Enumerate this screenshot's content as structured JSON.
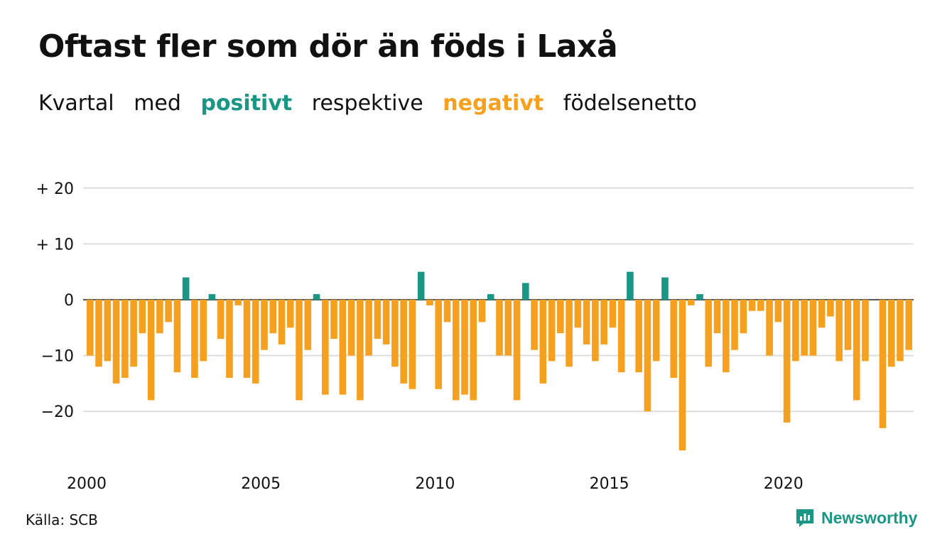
{
  "title": "Oftast fler som dör än föds i Laxå",
  "subtitle": {
    "w1": "Kvartal",
    "w2": "med",
    "positive": "positivt",
    "w3": "respektive",
    "negative": "negativt",
    "w4": "födelsenetto"
  },
  "source": "Källa: SCB",
  "brand": "Newsworthy",
  "colors": {
    "positive": "#1a9685",
    "negative": "#f5a01f",
    "grid": "#dddddd",
    "text": "#111111"
  },
  "chart_data": {
    "type": "bar",
    "x_start": 2000,
    "periods_per_year": 4,
    "ylim": [
      -29,
      20
    ],
    "yticks": [
      20,
      10,
      0,
      -10,
      -20
    ],
    "ytick_labels": [
      "+ 20",
      "+ 10",
      "0",
      "−10",
      "−20"
    ],
    "xtick_labels": [
      "2000",
      "2005",
      "2010",
      "2015",
      "2020"
    ],
    "values": [
      -10,
      -12,
      -11,
      -15,
      -14,
      -12,
      -6,
      -18,
      -6,
      -4,
      -13,
      4,
      -14,
      -11,
      1,
      -7,
      -14,
      -1,
      -14,
      -15,
      -9,
      -6,
      -8,
      -5,
      -18,
      -9,
      1,
      -17,
      -7,
      -17,
      -10,
      -18,
      -10,
      -7,
      -8,
      -12,
      -15,
      -16,
      5,
      -1,
      -16,
      -4,
      -18,
      -17,
      -18,
      -4,
      1,
      -10,
      -10,
      -18,
      3,
      -9,
      -15,
      -11,
      -6,
      -12,
      -5,
      -8,
      -11,
      -8,
      -5,
      -13,
      5,
      -13,
      -20,
      -11,
      4,
      -14,
      -27,
      -1,
      1,
      -12,
      -6,
      -13,
      -9,
      -6,
      -2,
      -2,
      -10,
      -4,
      -22,
      -11,
      -10,
      -10,
      -5,
      -3,
      -11,
      -9,
      -18,
      -11,
      0,
      -23,
      -12,
      -11,
      -9
    ]
  }
}
